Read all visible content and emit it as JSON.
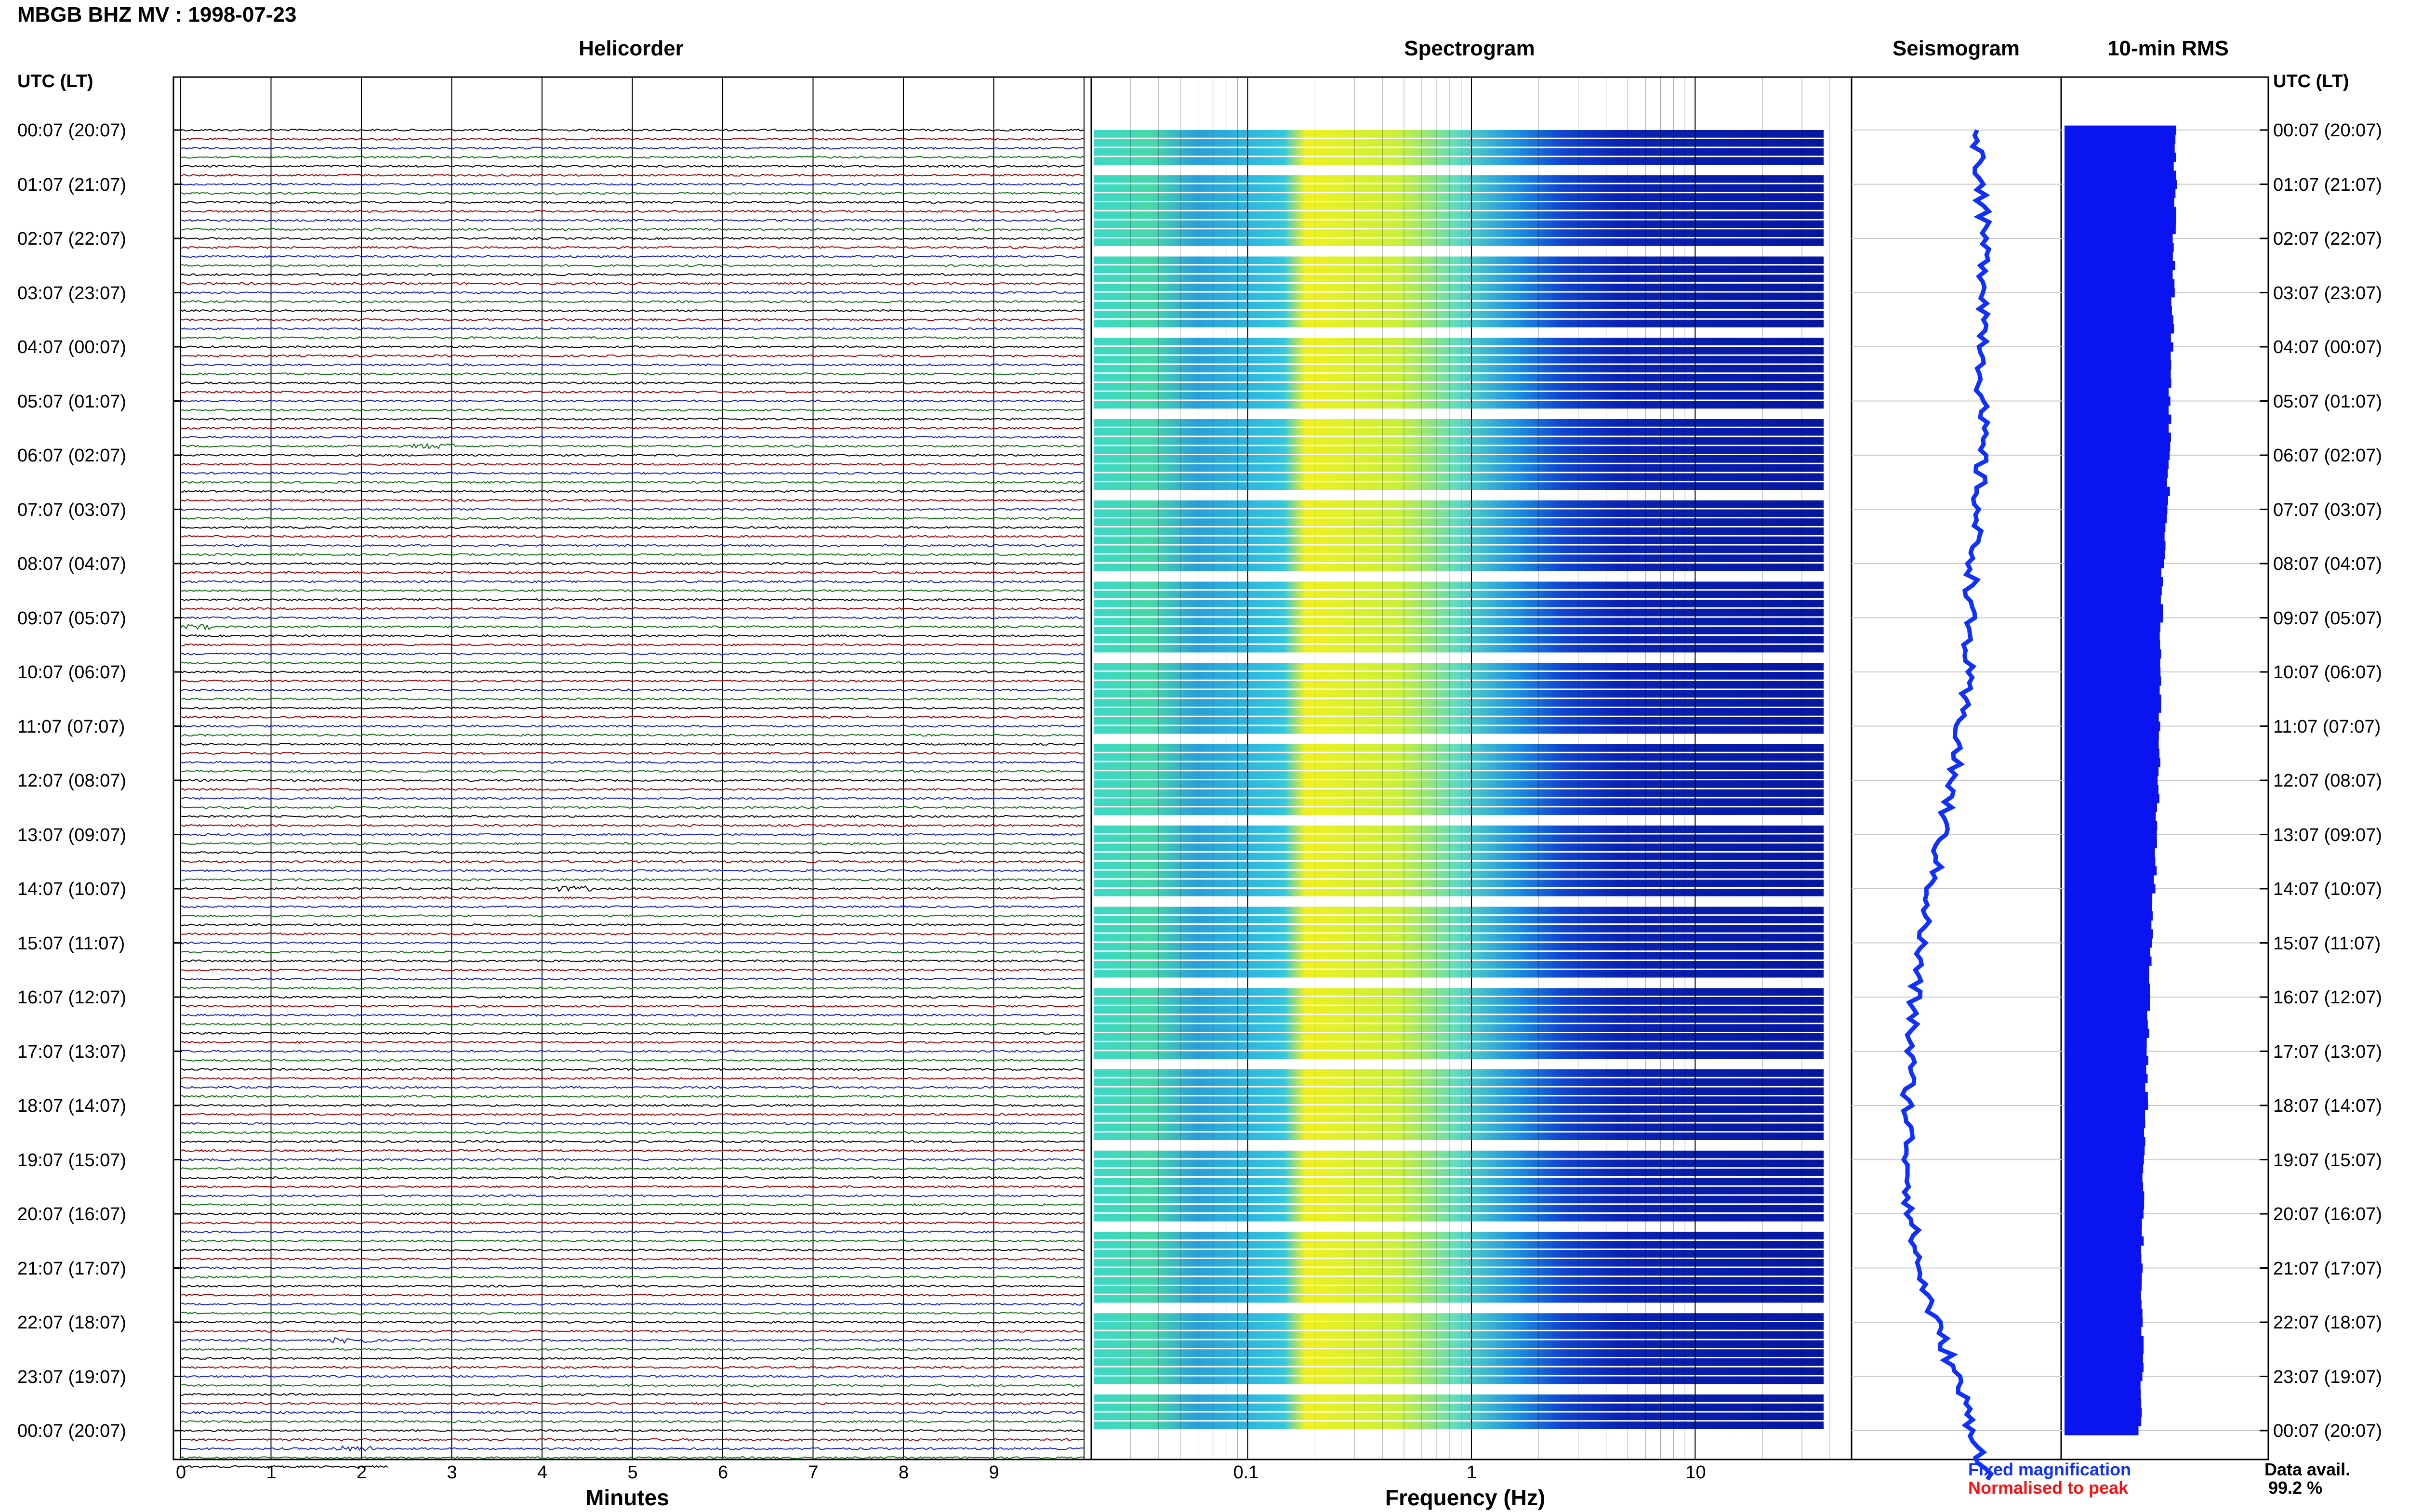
{
  "header": {
    "title": "MBGB BHZ MV : 1998-07-23"
  },
  "panels": {
    "helicorder": "Helicorder",
    "spectrogram": "Spectrogram",
    "seismogram": "Seismogram",
    "rms": "10-min RMS"
  },
  "axes": {
    "utc_label": "UTC (LT)",
    "minutes_label": "Minutes",
    "frequency_label": "Frequency (Hz)",
    "minute_ticks": [
      "0",
      "1",
      "2",
      "3",
      "4",
      "5",
      "6",
      "7",
      "8",
      "9"
    ],
    "frequency_ticks": [
      "0.1",
      "1",
      "10"
    ]
  },
  "time_labels": [
    "00:07 (20:07)",
    "01:07 (21:07)",
    "02:07 (22:07)",
    "03:07 (23:07)",
    "04:07 (00:07)",
    "05:07 (01:07)",
    "06:07 (02:07)",
    "07:07 (03:07)",
    "08:07 (04:07)",
    "09:07 (05:07)",
    "10:07 (06:07)",
    "11:07 (07:07)",
    "12:07 (08:07)",
    "13:07 (09:07)",
    "14:07 (10:07)",
    "15:07 (11:07)",
    "16:07 (12:07)",
    "17:07 (13:07)",
    "18:07 (14:07)",
    "19:07 (15:07)",
    "20:07 (16:07)",
    "21:07 (17:07)",
    "22:07 (18:07)",
    "23:07 (19:07)",
    "00:07 (20:07)"
  ],
  "legend": {
    "fixed": "Fixed magnification",
    "normalised": "Normalised to peak",
    "avail_label": "Data avail.",
    "avail_value": "99.2 %"
  },
  "colors": {
    "trace_cycle": [
      "#000000",
      "#a00000",
      "#1020c0",
      "#107010"
    ],
    "seismogram": "#1030ff",
    "rms": "#0a14f0",
    "spectrogram_low": "#0a1ea8",
    "spectrogram_high": "#f4f01e"
  },
  "chart_data": [
    {
      "type": "line",
      "name": "Helicorder",
      "xlabel": "Minutes",
      "xlim": [
        0,
        10
      ],
      "rows_per_hour": 6,
      "hours": 24,
      "notable_events": [
        {
          "hour_row": 35,
          "minute": 2.8
        },
        {
          "hour_row": 55,
          "minute": 0.1
        },
        {
          "hour_row": 84,
          "minute": 4.3
        },
        {
          "hour_row": 134,
          "minute": 1.9
        },
        {
          "hour_row": 146,
          "minute": 1.9
        }
      ]
    },
    {
      "type": "heatmap",
      "name": "Spectrogram",
      "xlabel": "Frequency (Hz)",
      "x_scale": "log",
      "xlim": [
        0.02,
        50
      ],
      "high_energy_band_hz": [
        0.2,
        1.0
      ]
    },
    {
      "type": "line",
      "name": "Seismogram",
      "description_values": "slow drift of long-period trace across the day",
      "drift": [
        0.6,
        0.62,
        0.63,
        0.64,
        0.63,
        0.62,
        0.62,
        0.6,
        0.58,
        0.56,
        0.55,
        0.52,
        0.48,
        0.43,
        0.38,
        0.33,
        0.3,
        0.28,
        0.27,
        0.27,
        0.28,
        0.32,
        0.4,
        0.5,
        0.58
      ]
    },
    {
      "type": "bar",
      "name": "10-min RMS",
      "hourly_level": [
        1.0,
        1.0,
        0.99,
        0.98,
        0.97,
        0.95,
        0.95,
        0.93,
        0.89,
        0.88,
        0.86,
        0.86,
        0.85,
        0.83,
        0.81,
        0.78,
        0.76,
        0.75,
        0.74,
        0.72,
        0.71,
        0.7,
        0.7,
        0.7,
        0.68
      ]
    }
  ]
}
